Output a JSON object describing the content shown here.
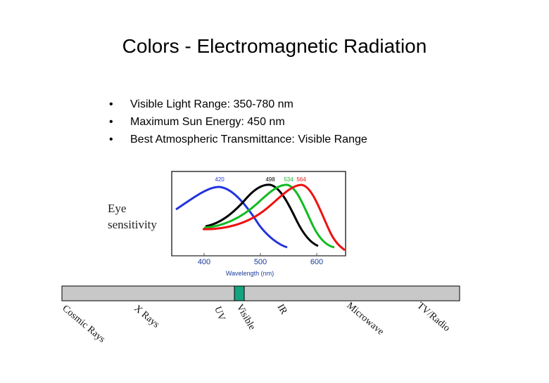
{
  "slide": {
    "title": "Colors - Electromagnetic Radiation",
    "bullets": [
      "Visible Light Range: 350-780 nm",
      "Maximum Sun Energy: 450 nm",
      "Best Atmospheric Transmittance: Visible Range"
    ]
  },
  "sensitivity_chart": {
    "ylabel_line1": "Eye",
    "ylabel_line2": "sensitivity",
    "xlabel": "Wavelength (nm)",
    "x_ticks": [
      "400",
      "500",
      "600"
    ],
    "peak_labels": [
      "420",
      "498",
      "534",
      "564"
    ],
    "colors": {
      "blue": "#2233dd",
      "black": "#000000",
      "green": "#11bb22",
      "red": "#ee1111",
      "frame": "#333333"
    }
  },
  "spectrum": {
    "bar_color": "#c8c8c8",
    "visible_color": "#14a37f",
    "labels": [
      "Cosmic Rays",
      "X Rays",
      "UV",
      "Visible",
      "IR",
      "Microwave",
      "TV/Radio"
    ]
  }
}
